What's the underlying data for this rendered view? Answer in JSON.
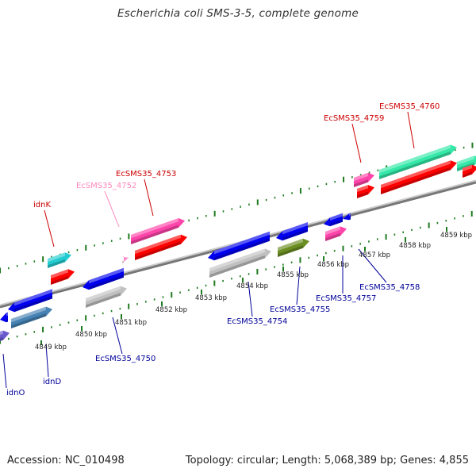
{
  "title": "Escherichia coli SMS-3-5, complete genome",
  "footer": {
    "accession": "Accession: NC_010498",
    "summary": "Topology: circular; Length: 5,068,389 bp; Genes: 4,855"
  },
  "colors": {
    "backbone": "#8a8a8a",
    "tick": "#1e7a1e",
    "top_label": "#cc0000",
    "pink_label": "#ff88bb",
    "bottom_label": "#000099",
    "kbp_label": "#222222"
  },
  "kbp_ticks": [
    "4849 kbp",
    "4850 kbp",
    "4851 kbp",
    "4852 kbp",
    "4853 kbp",
    "4854 kbp",
    "4855 kbp",
    "4856 kbp",
    "4857 kbp",
    "4858 kbp",
    "4859 kbp"
  ],
  "gene_labels": [
    {
      "text": "EcSMS35_4760",
      "color": "#cc0000"
    },
    {
      "text": "EcSMS35_4759",
      "color": "#cc0000"
    },
    {
      "text": "EcSMS35_4753",
      "color": "#cc0000"
    },
    {
      "text": "EcSMS35_4752",
      "color": "#ff88bb"
    },
    {
      "text": "idnK",
      "color": "#cc0000"
    },
    {
      "text": "EcSMS35_4758",
      "color": "#000099"
    },
    {
      "text": "EcSMS35_4757",
      "color": "#000099"
    },
    {
      "text": "EcSMS35_4755",
      "color": "#000099"
    },
    {
      "text": "EcSMS35_4754",
      "color": "#000099"
    },
    {
      "text": "EcSMS35_4750",
      "color": "#000099"
    },
    {
      "text": "idnD",
      "color": "#000099"
    },
    {
      "text": "idnO",
      "color": "#000099"
    }
  ],
  "features": [
    {
      "name": "EcSMS35_4760 (cds)",
      "color": "#ff0000"
    },
    {
      "name": "EcSMS35_4760 (gene)",
      "color": "#33e8a8"
    },
    {
      "name": "EcSMS35_4759 (cds)",
      "color": "#ff0000"
    },
    {
      "name": "EcSMS35_4759 (gene)",
      "color": "#ff44aa"
    },
    {
      "name": "EcSMS35_4753 (cds)",
      "color": "#ff0000"
    },
    {
      "name": "EcSMS35_4753 (gene)",
      "color": "#ff44aa"
    },
    {
      "name": "EcSMS35_4752",
      "color": "#ff88cc"
    },
    {
      "name": "idnK (cds)",
      "color": "#ff0000"
    },
    {
      "name": "idnK (gene)",
      "color": "#22ccd0"
    },
    {
      "name": "EcSMS35_4758 (cds)",
      "color": "#0000ee"
    },
    {
      "name": "EcSMS35_4757 (cds)",
      "color": "#0000ee"
    },
    {
      "name": "EcSMS35_4757 (gene)",
      "color": "#ff44aa"
    },
    {
      "name": "EcSMS35_4755 (cds)",
      "color": "#0000ee"
    },
    {
      "name": "EcSMS35_4755 (gene)",
      "color": "#6b8e23"
    },
    {
      "name": "EcSMS35_4754 (cds)",
      "color": "#0000ee"
    },
    {
      "name": "EcSMS35_4754 (gene)",
      "color": "#c0c0c0"
    },
    {
      "name": "EcSMS35_4750 (cds)",
      "color": "#0000ee"
    },
    {
      "name": "EcSMS35_4750 (gene)",
      "color": "#c0c0c0"
    },
    {
      "name": "idnD (cds)",
      "color": "#0000ee"
    },
    {
      "name": "idnD (gene)",
      "color": "#4682b4"
    },
    {
      "name": "idnO (cds)",
      "color": "#0000ee"
    },
    {
      "name": "idnO (gene)",
      "color": "#6a5acd"
    }
  ]
}
